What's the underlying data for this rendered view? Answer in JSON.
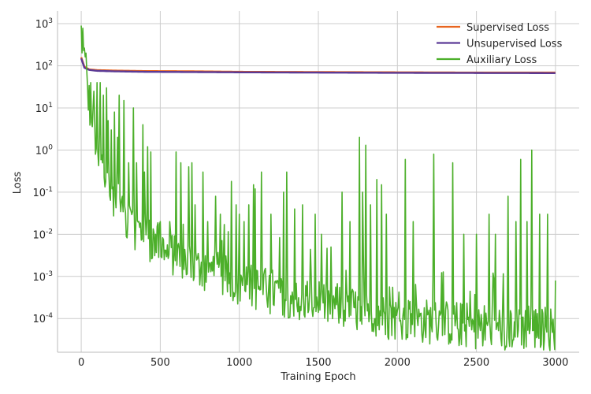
{
  "chart_data": {
    "type": "line",
    "title": "",
    "xlabel": "Training Epoch",
    "ylabel": "Loss",
    "yscale": "log",
    "xlim": [
      -150,
      3150
    ],
    "ylim_exponents": [
      -4.8,
      3.3
    ],
    "x_ticks": [
      0,
      500,
      1000,
      1500,
      2000,
      2500,
      3000
    ],
    "y_tick_exponents": [
      -4,
      -3,
      -2,
      -1,
      0,
      1,
      2,
      3
    ],
    "grid": true,
    "legend_position": "top-right",
    "series": [
      {
        "name": "Supervised Loss",
        "color": "#e8641e",
        "points": [
          [
            0,
            160
          ],
          [
            20,
            95
          ],
          [
            50,
            82
          ],
          [
            100,
            79
          ],
          [
            200,
            77
          ],
          [
            400,
            75
          ],
          [
            700,
            74
          ],
          [
            1000,
            72
          ],
          [
            1500,
            71
          ],
          [
            2000,
            70
          ],
          [
            2500,
            69
          ],
          [
            3000,
            69
          ]
        ]
      },
      {
        "name": "Unsupervised Loss",
        "color": "#5b3a96",
        "points": [
          [
            0,
            150
          ],
          [
            20,
            90
          ],
          [
            50,
            80
          ],
          [
            100,
            76
          ],
          [
            200,
            74
          ],
          [
            400,
            72
          ],
          [
            700,
            71
          ],
          [
            1000,
            70
          ],
          [
            1500,
            69
          ],
          [
            2000,
            68
          ],
          [
            2500,
            67.5
          ],
          [
            3000,
            67
          ]
        ]
      },
      {
        "name": "Auxiliary Loss",
        "color": "#4caf2a",
        "baseline": [
          [
            0,
            300
          ],
          [
            20,
            60
          ],
          [
            50,
            8
          ],
          [
            100,
            0.7
          ],
          [
            150,
            0.15
          ],
          [
            200,
            0.06
          ],
          [
            300,
            0.012
          ],
          [
            400,
            0.006
          ],
          [
            500,
            0.003
          ],
          [
            700,
            0.0012
          ],
          [
            1000,
            0.0004
          ],
          [
            1500,
            0.00015
          ],
          [
            2000,
            6e-05
          ],
          [
            2500,
            4e-05
          ],
          [
            3000,
            3.5e-05
          ]
        ],
        "spikes": [
          [
            0,
            900
          ],
          [
            30,
            200
          ],
          [
            60,
            40
          ],
          [
            80,
            25
          ],
          [
            100,
            40
          ],
          [
            120,
            40
          ],
          [
            140,
            20
          ],
          [
            160,
            30
          ],
          [
            170,
            5
          ],
          [
            190,
            3
          ],
          [
            210,
            8
          ],
          [
            230,
            2
          ],
          [
            240,
            20
          ],
          [
            270,
            15
          ],
          [
            300,
            0.5
          ],
          [
            330,
            10
          ],
          [
            350,
            0.5
          ],
          [
            390,
            4
          ],
          [
            400,
            0.3
          ],
          [
            420,
            1.2
          ],
          [
            440,
            0.9
          ],
          [
            470,
            0.01
          ],
          [
            500,
            0.02
          ],
          [
            560,
            0.02
          ],
          [
            600,
            0.9
          ],
          [
            630,
            0.5
          ],
          [
            680,
            0.4
          ],
          [
            700,
            0.5
          ],
          [
            720,
            0.05
          ],
          [
            770,
            0.3
          ],
          [
            800,
            0.02
          ],
          [
            850,
            0.08
          ],
          [
            880,
            0.03
          ],
          [
            950,
            0.18
          ],
          [
            980,
            0.05
          ],
          [
            1000,
            0.03
          ],
          [
            1030,
            0.02
          ],
          [
            1060,
            0.05
          ],
          [
            1090,
            0.15
          ],
          [
            1100,
            0.12
          ],
          [
            1140,
            0.3
          ],
          [
            1200,
            0.03
          ],
          [
            1280,
            0.1
          ],
          [
            1300,
            0.3
          ],
          [
            1350,
            0.04
          ],
          [
            1400,
            0.05
          ],
          [
            1480,
            0.03
          ],
          [
            1520,
            0.01
          ],
          [
            1580,
            0.005
          ],
          [
            1650,
            0.1
          ],
          [
            1700,
            0.02
          ],
          [
            1760,
            2
          ],
          [
            1780,
            0.1
          ],
          [
            1800,
            1.3
          ],
          [
            1830,
            0.05
          ],
          [
            1870,
            0.2
          ],
          [
            1900,
            0.15
          ],
          [
            1930,
            0.03
          ],
          [
            2050,
            0.6
          ],
          [
            2100,
            0.02
          ],
          [
            2230,
            0.8
          ],
          [
            2350,
            0.5
          ],
          [
            2420,
            0.01
          ],
          [
            2500,
            0.01
          ],
          [
            2580,
            0.03
          ],
          [
            2620,
            0.01
          ],
          [
            2700,
            0.08
          ],
          [
            2750,
            0.02
          ],
          [
            2780,
            0.6
          ],
          [
            2820,
            0.02
          ],
          [
            2850,
            1
          ],
          [
            2900,
            0.03
          ],
          [
            2950,
            0.03
          ],
          [
            3000,
            0.0008
          ]
        ]
      }
    ]
  }
}
